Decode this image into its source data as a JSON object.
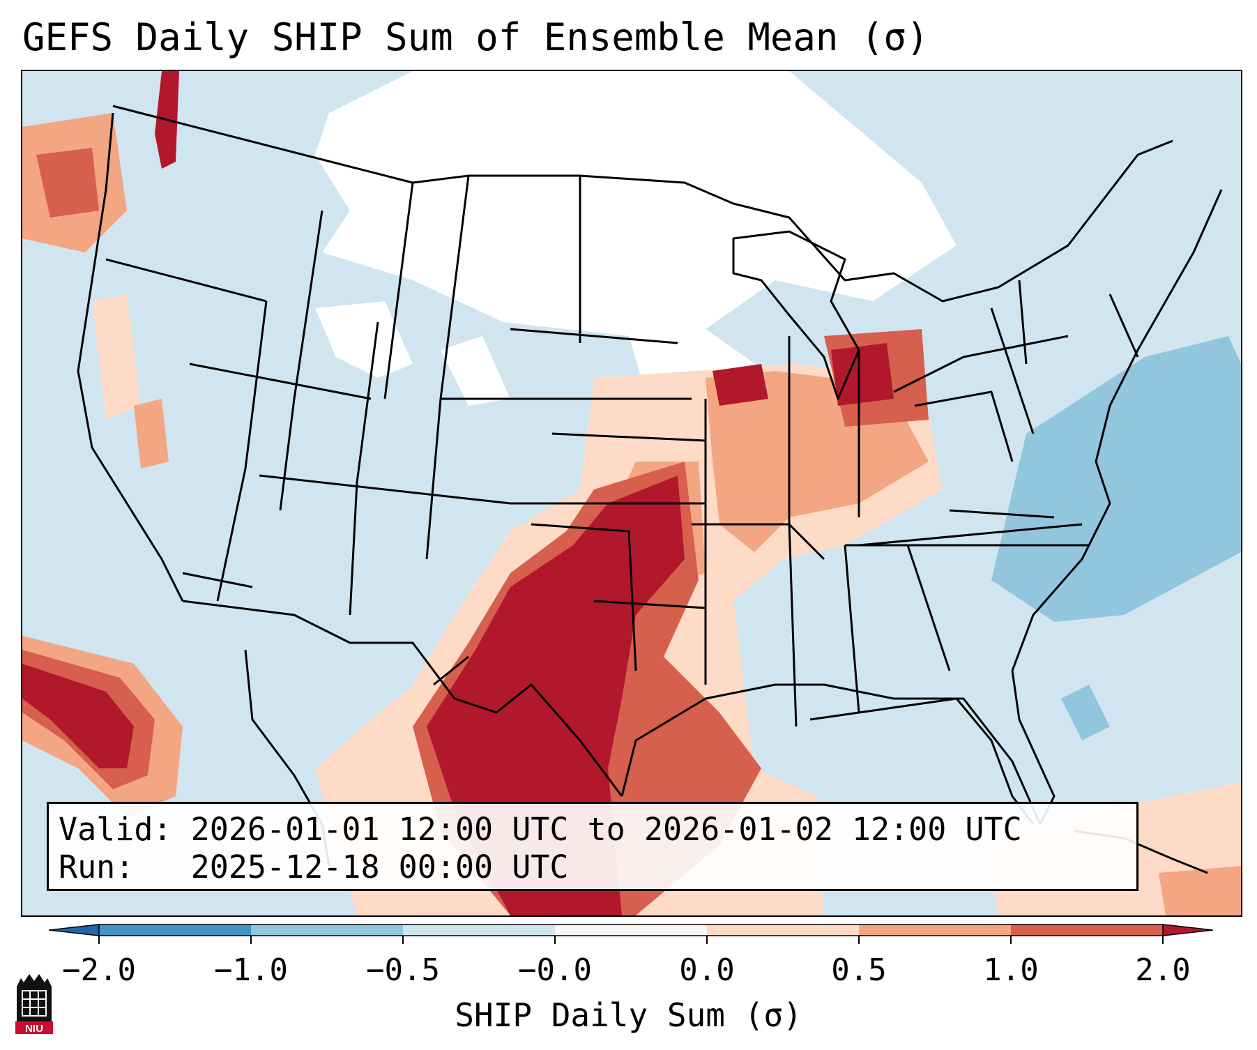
{
  "title": "GEFS Daily SHIP Sum of Ensemble Mean (σ)",
  "info": {
    "valid_line": "Valid: 2026-01-01 12:00 UTC to 2026-01-02 12:00 UTC",
    "run_line": "Run:   2025-12-18 00:00 UTC"
  },
  "colorbar": {
    "label": "SHIP Daily Sum (σ)",
    "tick_labels": [
      "−2.0",
      "−1.0",
      "−0.5",
      "−0.0",
      "0.0",
      "0.5",
      "1.0",
      "2.0"
    ],
    "bin_colors": [
      "#2166ac",
      "#4393c3",
      "#92c5de",
      "#d1e5f0",
      "#f7f7f7",
      "#fddbc7",
      "#f4a582",
      "#d6604d",
      "#b2182b"
    ],
    "extend": "both"
  },
  "map": {
    "region": "Continental United States",
    "projection": "Lambert conformal",
    "ocean_color": "#cfe4f1",
    "land_color": "#d1e5f0",
    "state_line_color": "#000000"
  },
  "logo": {
    "text": "NIU",
    "color": "#c8102e"
  }
}
